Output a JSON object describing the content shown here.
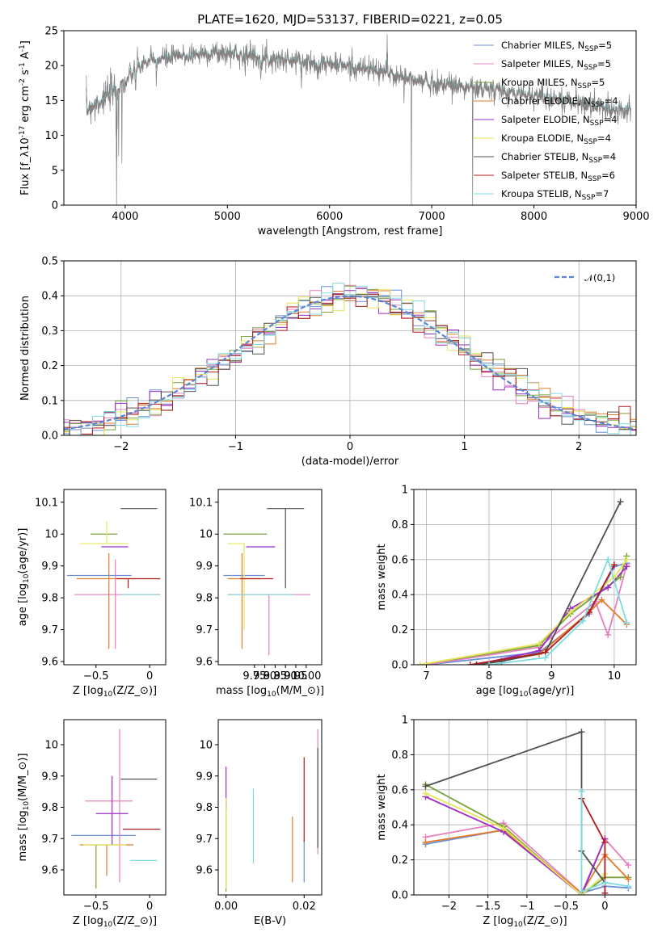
{
  "title": "PLATE=1620, MJD=53137, FIBERID=0221, z=0.05",
  "models": [
    {
      "name": "Chabrier MILES, N$_{SSP}$=5",
      "color": "#6a8fd8"
    },
    {
      "name": "Salpeter MILES, N$_{SSP}$=5",
      "color": "#e77fbd"
    },
    {
      "name": "Kroupa MILES, N$_{SSP}$=5",
      "color": "#7aa33c"
    },
    {
      "name": "Chabrier ELODIE, N$_{SSP}$=4",
      "color": "#e07b2e"
    },
    {
      "name": "Salpeter ELODIE, N$_{SSP}$=4",
      "color": "#9b2ec4"
    },
    {
      "name": "Kroupa ELODIE, N$_{SSP}$=4",
      "color": "#e6e65a"
    },
    {
      "name": "Chabrier STELIB, N$_{SSP}$=4",
      "color": "#505050"
    },
    {
      "name": "Salpeter STELIB, N$_{SSP}$=6",
      "color": "#b01c1c"
    },
    {
      "name": "Kroupa STELIB, N$_{SSP}$=7",
      "color": "#7fdbe0"
    }
  ],
  "chart_data": [
    {
      "id": "spectrum",
      "type": "line",
      "xlabel": "wavelength [Angstrom, rest frame]",
      "ylabel": "Flux [f$_\\lambda$10$^{-17}$ erg cm$^{-2}$ s$^{-1}$ A$^{-1}$]",
      "xlim": [
        3400,
        9000
      ],
      "ylim": [
        0,
        25
      ],
      "xticks": [
        4000,
        5000,
        6000,
        7000,
        8000,
        9000
      ],
      "yticks": [
        0,
        5,
        10,
        15,
        20,
        25
      ],
      "observed_color": "#808080",
      "continuum": {
        "x": [
          3600,
          3700,
          3800,
          3900,
          4000,
          4100,
          4200,
          4400,
          4600,
          4800,
          5000,
          5200,
          5400,
          5600,
          5800,
          6000,
          6200,
          6400,
          6600,
          6800,
          7000,
          7200,
          7400,
          7600,
          7800,
          8000,
          8200,
          8400,
          8600,
          8800,
          9000
        ],
        "y": [
          13.5,
          14.5,
          15.5,
          16.5,
          17.5,
          19.5,
          20.5,
          21.0,
          21.5,
          21.8,
          21.8,
          21.5,
          21.0,
          20.8,
          20.5,
          20.3,
          19.8,
          19.5,
          18.8,
          18.0,
          17.5,
          17.3,
          16.8,
          16.5,
          16.0,
          15.8,
          15.3,
          14.8,
          14.2,
          13.8,
          13.3
        ]
      },
      "spikes": [
        {
          "x": 3705,
          "y": 12.0
        },
        {
          "x": 3935,
          "y": 7.0
        },
        {
          "x": 3968,
          "y": 6.0
        },
        {
          "x": 3915,
          "y": 0.0
        },
        {
          "x": 4102,
          "y": 16.5
        },
        {
          "x": 4305,
          "y": 17.0
        },
        {
          "x": 5175,
          "y": 18.5
        },
        {
          "x": 5892,
          "y": 18.0
        },
        {
          "x": 6565,
          "y": 24.5
        },
        {
          "x": 6800,
          "y": 0.0
        },
        {
          "x": 7400,
          "y": 0.0
        }
      ]
    },
    {
      "id": "residuals",
      "type": "step",
      "xlabel": "(data-model)/error",
      "ylabel": "Normed distribution",
      "xlim": [
        -2.5,
        2.5
      ],
      "ylim": [
        0,
        0.5
      ],
      "xticks": [
        -2,
        -1,
        0,
        1,
        2
      ],
      "yticks": [
        0.0,
        0.1,
        0.2,
        0.3,
        0.4,
        0.5
      ],
      "legend": "$\\mathcal{N}(0,1)$",
      "legend_position": "top-right",
      "bin_width": 0.1
    },
    {
      "id": "age_vs_Z",
      "type": "errorbar",
      "xlabel": "Z [log$_{10}$(Z/Z$_\\odot$)]",
      "ylabel": "age  [log$_{10}$(age/yr)]",
      "xlim": [
        -0.8,
        0.15
      ],
      "ylim": [
        9.59,
        10.14
      ],
      "xticks": [
        -0.5,
        0.0
      ],
      "yticks": [
        9.6,
        9.7,
        9.8,
        9.9,
        10.0,
        10.1
      ],
      "points": [
        {
          "x": -0.45,
          "y": 9.87,
          "xerr": [
            0.32,
            0.28
          ],
          "yerr": [
            0.0,
            0.0
          ],
          "m": 0
        },
        {
          "x": -0.32,
          "y": 9.81,
          "xerr": [
            0.38,
            0.42
          ],
          "yerr": [
            0.17,
            0.11
          ],
          "m": 1
        },
        {
          "x": -0.4,
          "y": 10.0,
          "xerr": [
            0.15,
            0.1
          ],
          "yerr": [
            0.0,
            0.0
          ],
          "m": 2
        },
        {
          "x": -0.38,
          "y": 9.86,
          "xerr": [
            0.3,
            0.25
          ],
          "yerr": [
            0.22,
            0.08
          ],
          "m": 3
        },
        {
          "x": -0.3,
          "y": 9.96,
          "xerr": [
            0.15,
            0.1
          ],
          "yerr": [
            0.0,
            0.0
          ],
          "m": 4
        },
        {
          "x": -0.4,
          "y": 9.97,
          "xerr": [
            0.25,
            0.2
          ],
          "yerr": [
            0.0,
            0.07
          ],
          "m": 5
        },
        {
          "x": -0.1,
          "y": 10.08,
          "xerr": [
            0.17,
            0.17
          ],
          "yerr": [
            0.0,
            0.0
          ],
          "m": 6
        },
        {
          "x": -0.2,
          "y": 9.86,
          "xerr": [
            0.11,
            0.3
          ],
          "yerr": [
            0.03,
            0.0
          ],
          "m": 7
        },
        {
          "x": -0.13,
          "y": 9.81,
          "xerr": [
            0.14,
            0.22
          ],
          "yerr": [
            0.0,
            0.0
          ],
          "m": 8
        }
      ]
    },
    {
      "id": "age_vs_mass",
      "type": "errorbar",
      "xlabel": "mass [log$_{10}$(M/M$_\\odot$)]",
      "ylabel": "",
      "xlim": [
        9.575,
        10.075
      ],
      "ylim": [
        9.59,
        10.14
      ],
      "xticks": [
        9.75,
        9.8,
        9.85,
        9.9,
        9.95,
        10.0
      ],
      "xticklabels": [
        "9.75",
        "9.80",
        "9.85",
        "9.90",
        "9.95",
        "10.00"
      ],
      "yticks": [
        9.6,
        9.7,
        9.8,
        9.9,
        10.0,
        10.1
      ],
      "points": [
        {
          "x": 9.71,
          "y": 9.87,
          "xerr": [
            0.11,
            0.09
          ],
          "yerr": [
            0.0,
            0.0
          ],
          "m": 0
        },
        {
          "x": 9.82,
          "y": 9.81,
          "xerr": [
            0.2,
            0.2
          ],
          "yerr": [
            0.19,
            0.0
          ],
          "m": 1
        },
        {
          "x": 9.7,
          "y": 10.0,
          "xerr": [
            0.1,
            0.11
          ],
          "yerr": [
            0.0,
            0.0
          ],
          "m": 2
        },
        {
          "x": 9.69,
          "y": 9.86,
          "xerr": [
            0.07,
            0.09
          ],
          "yerr": [
            0.22,
            0.08
          ],
          "m": 3
        },
        {
          "x": 9.78,
          "y": 9.96,
          "xerr": [
            0.07,
            0.07
          ],
          "yerr": [
            0.0,
            0.0
          ],
          "m": 4
        },
        {
          "x": 9.7,
          "y": 9.97,
          "xerr": [
            0.08,
            0.0
          ],
          "yerr": [
            0.27,
            0.0
          ],
          "m": 5
        },
        {
          "x": 9.9,
          "y": 10.08,
          "xerr": [
            0.09,
            0.09
          ],
          "yerr": [
            0.25,
            0.0
          ],
          "m": 6
        },
        {
          "x": 9.74,
          "y": 9.86,
          "xerr": [
            0.06,
            0.1
          ],
          "yerr": [
            0.0,
            0.0
          ],
          "m": 7
        },
        {
          "x": 9.62,
          "y": 9.81,
          "xerr": [
            0.0,
            0.32
          ],
          "yerr": [
            0.0,
            0.0
          ],
          "m": 8
        }
      ]
    },
    {
      "id": "weight_vs_age",
      "type": "line",
      "xlabel": "age  [log$_{10}$(age/yr)]",
      "ylabel": "mass weight",
      "xlim": [
        6.8,
        10.35
      ],
      "ylim": [
        0.0,
        1.0
      ],
      "xticks": [
        7,
        8,
        9,
        10
      ],
      "yticks": [
        0.0,
        0.2,
        0.4,
        0.6,
        0.8,
        1.0
      ],
      "series": [
        {
          "m": 0,
          "x": [
            7.0,
            8.8,
            9.6,
            10.0,
            10.2
          ],
          "y": [
            0.0,
            0.07,
            0.29,
            0.56,
            0.58
          ]
        },
        {
          "m": 1,
          "x": [
            7.0,
            8.8,
            9.7,
            9.9,
            10.2
          ],
          "y": [
            0.0,
            0.1,
            0.36,
            0.17,
            0.57
          ]
        },
        {
          "m": 2,
          "x": [
            6.9,
            8.8,
            9.3,
            10.1,
            10.2
          ],
          "y": [
            0.0,
            0.11,
            0.29,
            0.5,
            0.62
          ]
        },
        {
          "m": 3,
          "x": [
            7.8,
            8.8,
            9.6,
            9.8,
            10.2
          ],
          "y": [
            0.0,
            0.06,
            0.3,
            0.37,
            0.23
          ]
        },
        {
          "m": 4,
          "x": [
            7.8,
            8.8,
            9.3,
            9.9,
            10.2
          ],
          "y": [
            0.0,
            0.08,
            0.32,
            0.44,
            0.56
          ]
        },
        {
          "m": 5,
          "x": [
            6.9,
            8.8,
            9.3,
            10.0,
            10.2
          ],
          "y": [
            0.0,
            0.12,
            0.3,
            0.5,
            0.6
          ]
        },
        {
          "m": 6,
          "x": [
            7.8,
            8.2,
            8.9,
            10.1
          ],
          "y": [
            0.0,
            0.02,
            0.07,
            0.93
          ]
        },
        {
          "m": 7,
          "x": [
            7.7,
            8.9,
            9.6,
            10.0
          ],
          "y": [
            0.0,
            0.07,
            0.3,
            0.57
          ]
        },
        {
          "m": 8,
          "x": [
            8.0,
            8.9,
            9.5,
            9.9,
            10.2
          ],
          "y": [
            0.0,
            0.04,
            0.25,
            0.6,
            0.24
          ]
        }
      ]
    },
    {
      "id": "mass_vs_Z",
      "type": "errorbar",
      "xlabel": "Z [log$_{10}$(Z/Z$_\\odot$)]",
      "ylabel": "mass [log$_{10}$(M/M$_\\odot$)]",
      "xlim": [
        -0.8,
        0.15
      ],
      "ylim": [
        9.52,
        10.08
      ],
      "xticks": [
        -0.5,
        0.0
      ],
      "yticks": [
        9.6,
        9.7,
        9.8,
        9.9,
        10.0
      ],
      "points": [
        {
          "x": -0.45,
          "y": 9.71,
          "xerr": [
            0.28,
            0.32
          ],
          "yerr": [
            0.0,
            0.0
          ],
          "m": 0
        },
        {
          "x": -0.28,
          "y": 9.82,
          "xerr": [
            0.32,
            0.12
          ],
          "yerr": [
            0.26,
            0.23
          ],
          "m": 1
        },
        {
          "x": -0.5,
          "y": 9.68,
          "xerr": [
            0.0,
            0.0
          ],
          "yerr": [
            0.14,
            0.0
          ],
          "m": 2
        },
        {
          "x": -0.4,
          "y": 9.68,
          "xerr": [
            0.25,
            0.25
          ],
          "yerr": [
            0.1,
            0.0
          ],
          "m": 3
        },
        {
          "x": -0.35,
          "y": 9.78,
          "xerr": [
            0.15,
            0.15
          ],
          "yerr": [
            0.1,
            0.12
          ],
          "m": 4
        },
        {
          "x": -0.42,
          "y": 9.68,
          "xerr": [
            0.2,
            0.2
          ],
          "yerr": [
            0.0,
            0.0
          ],
          "m": 5
        },
        {
          "x": -0.1,
          "y": 9.89,
          "xerr": [
            0.17,
            0.17
          ],
          "yerr": [
            0.0,
            0.0
          ],
          "m": 6
        },
        {
          "x": -0.15,
          "y": 9.73,
          "xerr": [
            0.1,
            0.25
          ],
          "yerr": [
            0.0,
            0.0
          ],
          "m": 7
        },
        {
          "x": -0.1,
          "y": 9.63,
          "xerr": [
            0.08,
            0.17
          ],
          "yerr": [
            0.0,
            0.0
          ],
          "m": 8
        }
      ]
    },
    {
      "id": "mass_vs_EBV",
      "type": "errorbar",
      "xlabel": "E(B-V)",
      "ylabel": "",
      "xlim": [
        -0.002,
        0.0245
      ],
      "ylim": [
        9.52,
        10.08
      ],
      "xticks": [
        0.0,
        0.02
      ],
      "xticklabels": [
        "0.00",
        "0.02"
      ],
      "yticks": [
        9.6,
        9.7,
        9.8,
        9.9,
        10.0
      ],
      "points": [
        {
          "x": 0.02,
          "y": 9.7,
          "xerr": [
            0,
            0
          ],
          "yerr": [
            0.14,
            0.0
          ],
          "m": 0
        },
        {
          "x": 0.0235,
          "y": 9.85,
          "xerr": [
            0,
            0
          ],
          "yerr": [
            0.2,
            0.2
          ],
          "m": 1
        },
        {
          "x": 0.0,
          "y": 9.65,
          "xerr": [
            0,
            0
          ],
          "yerr": [
            0.12,
            0.17
          ],
          "m": 2
        },
        {
          "x": 0.017,
          "y": 9.66,
          "xerr": [
            0,
            0
          ],
          "yerr": [
            0.1,
            0.11
          ],
          "m": 3
        },
        {
          "x": 0.0,
          "y": 9.85,
          "xerr": [
            0,
            0
          ],
          "yerr": [
            0.06,
            0.08
          ],
          "m": 4
        },
        {
          "x": 0.0,
          "y": 9.71,
          "xerr": [
            0,
            0
          ],
          "yerr": [
            0.17,
            0.12
          ],
          "m": 5
        },
        {
          "x": 0.0235,
          "y": 9.83,
          "xerr": [
            0,
            0
          ],
          "yerr": [
            0.16,
            0.16
          ],
          "m": 6
        },
        {
          "x": 0.02,
          "y": 9.83,
          "xerr": [
            0,
            0
          ],
          "yerr": [
            0.14,
            0.13
          ],
          "m": 7
        },
        {
          "x": 0.007,
          "y": 9.74,
          "xerr": [
            0,
            0
          ],
          "yerr": [
            0.12,
            0.12
          ],
          "m": 8
        }
      ]
    },
    {
      "id": "weight_vs_Z",
      "type": "line",
      "xlabel": "Z [log$_{10}$(Z/Z$_\\odot$)]",
      "ylabel": "mass weight",
      "xlim": [
        -2.45,
        0.4
      ],
      "ylim": [
        0.0,
        1.0
      ],
      "xticks": [
        -2.0,
        -1.5,
        -1.0,
        -0.5,
        0.0
      ],
      "yticks": [
        0.0,
        0.2,
        0.4,
        0.6,
        0.8,
        1.0
      ],
      "series": [
        {
          "m": 0,
          "x": [
            -2.3,
            -1.3,
            -0.3,
            0.0,
            0.3
          ],
          "y": [
            0.29,
            0.37,
            0.01,
            0.05,
            0.04
          ]
        },
        {
          "m": 1,
          "x": [
            -2.3,
            -1.3,
            -0.3,
            0.0,
            0.3
          ],
          "y": [
            0.33,
            0.41,
            0.01,
            0.32,
            0.17
          ]
        },
        {
          "m": 2,
          "x": [
            -2.3,
            -1.3,
            -0.3,
            0.0,
            0.3
          ],
          "y": [
            0.63,
            0.39,
            0.0,
            0.1,
            0.1
          ]
        },
        {
          "m": 3,
          "x": [
            -2.3,
            -1.3,
            -0.3,
            0.0,
            0.3
          ],
          "y": [
            0.3,
            0.37,
            0.01,
            0.23,
            0.09
          ]
        },
        {
          "m": 4,
          "x": [
            -2.3,
            -1.3,
            -0.3,
            0.0
          ],
          "y": [
            0.56,
            0.36,
            0.0,
            0.32
          ]
        },
        {
          "m": 5,
          "x": [
            -2.3,
            -1.3,
            -0.3,
            0.0
          ],
          "y": [
            0.58,
            0.38,
            0.0,
            0.12
          ]
        },
        {
          "m": 6,
          "x": [
            -2.3,
            -0.3,
            -0.3,
            0.0
          ],
          "y": [
            0.62,
            0.93,
            0.25,
            0.07
          ]
        },
        {
          "m": 7,
          "x": [
            -0.3,
            0.0,
            0.0
          ],
          "y": [
            0.55,
            0.3,
            0.01
          ]
        },
        {
          "m": 8,
          "x": [
            -0.3,
            -0.3,
            0.0,
            0.3
          ],
          "y": [
            0.59,
            0.02,
            0.07,
            0.05
          ]
        }
      ]
    }
  ]
}
